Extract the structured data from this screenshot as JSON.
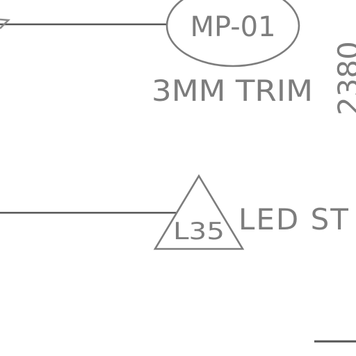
{
  "drawing": {
    "material_tag": {
      "code": "MP-01",
      "description": "3MM TRIM"
    },
    "lighting_tag": {
      "code": "L35",
      "description": "LED ST"
    },
    "dimension": {
      "value": "2380"
    }
  }
}
